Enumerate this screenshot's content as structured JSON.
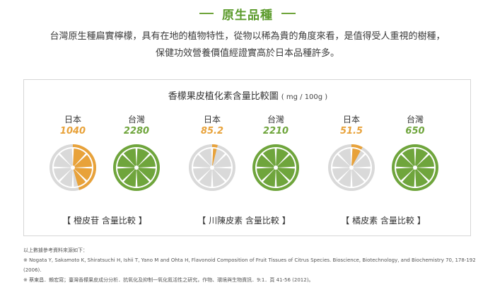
{
  "header": {
    "title": "原生品種",
    "intro_line1": "台灣原生種扁實檸檬，具有在地的植物特性，從物以稀為貴的角度來看，是值得受人重視的樹種，",
    "intro_line2": "保健功效營養價值經證實高於日本品種許多。"
  },
  "chart": {
    "title": "香檬果皮植化素含量比較圖",
    "unit": "( mg / 100g )"
  },
  "colors": {
    "accent_green": "#6fa53c",
    "japan_orange": "#e8a23a",
    "taiwan_green": "#6fa53c",
    "inactive_gray": "#d9d9d9"
  },
  "chart_data": {
    "type": "pie",
    "title": "香檬果皮植化素含量比較圖",
    "unit": "mg / 100g",
    "groups": [
      {
        "label": "【 橙皮苷 含量比較 】",
        "items": [
          {
            "country": "日本",
            "value": 1040,
            "display": "1040"
          },
          {
            "country": "台灣",
            "value": 2280,
            "display": "2280"
          }
        ]
      },
      {
        "label": "【 川陳皮素 含量比較 】",
        "items": [
          {
            "country": "日本",
            "value": 85.2,
            "display": "85.2"
          },
          {
            "country": "台灣",
            "value": 2210,
            "display": "2210"
          }
        ]
      },
      {
        "label": "【 橘皮素 含量比較 】",
        "items": [
          {
            "country": "日本",
            "value": 51.5,
            "display": "51.5"
          },
          {
            "country": "台灣",
            "value": 650,
            "display": "650"
          }
        ]
      }
    ]
  },
  "sources": {
    "heading": "以上數據參考資料來源如下：",
    "line1": "※ Nogata Y, Sakamoto K, Shiratsuchi H, Ishii T, Yano M and Ohta H, Flavonoid Composition of Fruit Tissues of Citrus Species. Bioscience, Biotechnology, and Biochemistry 70, 178-192 (2006).",
    "line2": "※ 蔡東昌．賴宏寫；臺灣香檬果皮成分分析．抗氧化及抑制一氧化氮活性之研究，作物、環境與生物資訊．9:1．頁 41-56 (2012)。"
  }
}
